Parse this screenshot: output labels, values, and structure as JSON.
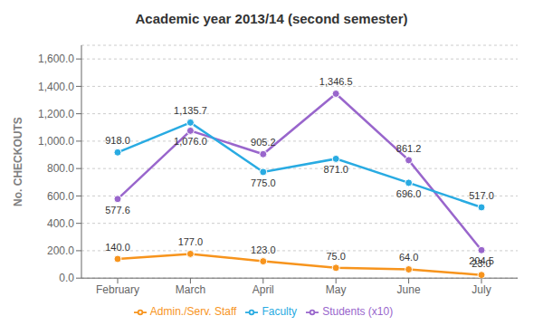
{
  "chart_data": {
    "type": "line",
    "title": "Academic year 2013/14 (second semester)",
    "ylabel": "No. CHECKOUTS",
    "categories": [
      "February",
      "March",
      "April",
      "May",
      "June",
      "July"
    ],
    "series": [
      {
        "name": "Students (x10)",
        "color": "#9966cc",
        "marker": "circle",
        "values": [
          577.6,
          1076.0,
          905.2,
          1346.5,
          861.2,
          204.5
        ],
        "value_labels": [
          "577.6",
          "1,076.0",
          "905.2",
          "1,346.5",
          "861.2",
          "204.5"
        ]
      },
      {
        "name": "Faculty",
        "color": "#29abe2",
        "marker": "circle",
        "values": [
          918.0,
          1135.7,
          775.0,
          871.0,
          696.0,
          517.0
        ],
        "value_labels": [
          "918.0",
          "1,135.7",
          "775.0",
          "871.0",
          "696.0",
          "517.0"
        ]
      },
      {
        "name": "Admin./Serv. Staff",
        "color": "#f7941d",
        "marker": "circle",
        "values": [
          140.0,
          177.0,
          123.0,
          75.0,
          64.0,
          23.0
        ],
        "value_labels": [
          "140.0",
          "177.0",
          "123.0",
          "75.0",
          "64.0",
          "23.0"
        ]
      }
    ],
    "ylim": [
      0,
      1700
    ],
    "yticks": [
      {
        "value": 0,
        "label": "0.0"
      },
      {
        "value": 200,
        "label": "200.0"
      },
      {
        "value": 400,
        "label": "400.0"
      },
      {
        "value": 600,
        "label": "600.0"
      },
      {
        "value": 800,
        "label": "800.0"
      },
      {
        "value": 1000,
        "label": "1,000.0"
      },
      {
        "value": 1200,
        "label": "1,200.0"
      },
      {
        "value": 1400,
        "label": "1,400.0"
      },
      {
        "value": 1600,
        "label": "1,600.0"
      }
    ],
    "grid": true,
    "legend": "bottom",
    "data_labels": true
  }
}
